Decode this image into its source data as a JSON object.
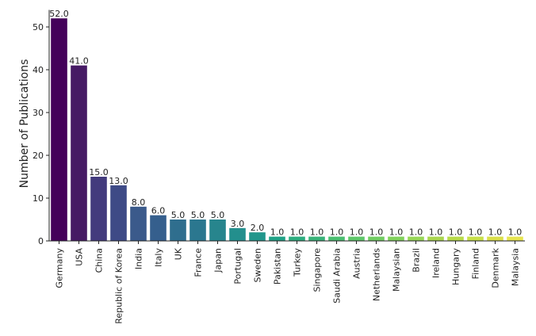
{
  "chart_data": {
    "type": "bar",
    "title": "",
    "xlabel": "",
    "ylabel": "Number of Publications",
    "ylim": [
      0,
      54
    ],
    "yticks": [
      0,
      10,
      20,
      30,
      40,
      50
    ],
    "grid": false,
    "legend": "none",
    "categories": [
      "Germany",
      "USA",
      "China",
      "Republic of Korea",
      "India",
      "Italy",
      "UK",
      "France",
      "Japan",
      "Portugal",
      "Sweden",
      "Pakistan",
      "Turkey",
      "Singapore",
      "Saudi Arabia",
      "Austria",
      "Netherlands",
      "Malaysian",
      "Brazil",
      "Ireland",
      "Hungary",
      "Finland",
      "Denmark",
      "Malaysia"
    ],
    "values": [
      52.0,
      41.0,
      15.0,
      13.0,
      8.0,
      6.0,
      5.0,
      5.0,
      5.0,
      3.0,
      2.0,
      1.0,
      1.0,
      1.0,
      1.0,
      1.0,
      1.0,
      1.0,
      1.0,
      1.0,
      1.0,
      1.0,
      1.0,
      1.0
    ],
    "value_labels": [
      "52.0",
      "41.0",
      "15.0",
      "13.0",
      "8.0",
      "6.0",
      "5.0",
      "5.0",
      "5.0",
      "3.0",
      "2.0",
      "1.0",
      "1.0",
      "1.0",
      "1.0",
      "1.0",
      "1.0",
      "1.0",
      "1.0",
      "1.0",
      "1.0",
      "1.0",
      "1.0",
      "1.0"
    ],
    "colors": [
      "#44015a",
      "#461a64",
      "#433b7d",
      "#3e4a86",
      "#3b5a8b",
      "#355f8d",
      "#2f6e8e",
      "#2b778f",
      "#27858d",
      "#238f8d",
      "#21968b",
      "#20a286",
      "#2dad7f",
      "#39b379",
      "#4bbf71",
      "#5fc76a",
      "#72cd63",
      "#82d25d",
      "#98d758",
      "#aad64f",
      "#b8db4a",
      "#c8e04a",
      "#dadf4a",
      "#e6e450"
    ]
  }
}
